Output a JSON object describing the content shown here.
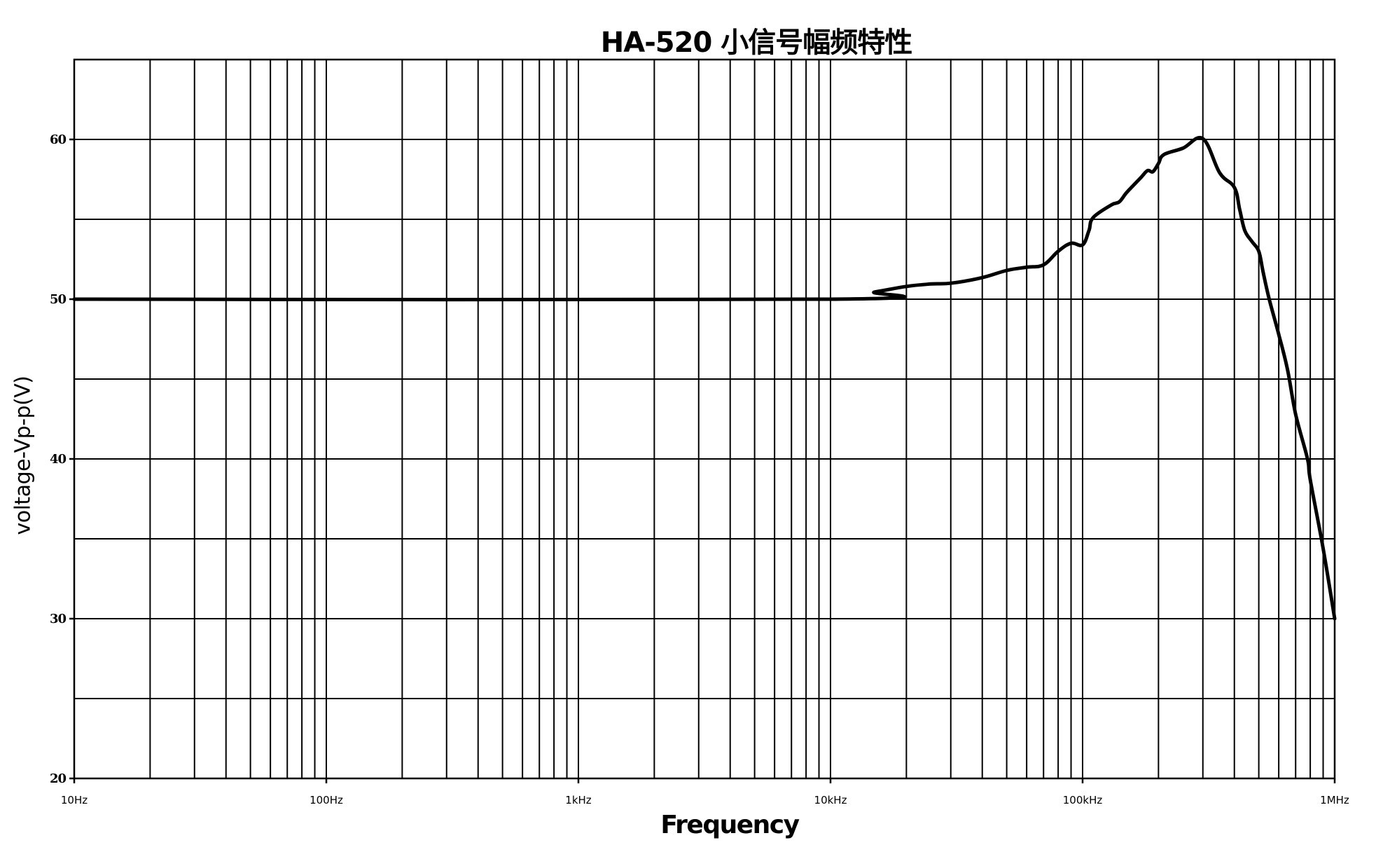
{
  "chart_data": {
    "type": "line",
    "title": "HA-520 小信号幅频特性",
    "xlabel": "Frequency",
    "ylabel": "voltage-Vp-p(V)",
    "x_scale": "log",
    "xlim": [
      10,
      1000000
    ],
    "ylim": [
      20,
      65
    ],
    "grid": true,
    "legend": null,
    "x_tick_values": [
      10,
      100,
      1000,
      10000,
      100000,
      1000000
    ],
    "x_tick_labels": [
      "10Hz",
      "100Hz",
      "1kHz",
      "10kHz",
      "100kHz",
      "1MHz"
    ],
    "y_tick_values": [
      20,
      30,
      40,
      50,
      60
    ],
    "y_tick_labels": [
      "20",
      "30",
      "40",
      "50",
      "60"
    ],
    "y_minor_grid": [
      25,
      35,
      45,
      55,
      65
    ],
    "series": [
      {
        "name": "Vp-p",
        "color": "#000000",
        "x": [
          10,
          10000,
          15000,
          20000,
          25000,
          30000,
          40000,
          50000,
          60000,
          70000,
          80000,
          90000,
          100000,
          106000,
          110000,
          130000,
          140000,
          150000,
          170000,
          181000,
          190000,
          200000,
          210000,
          250000,
          300000,
          350000,
          400000,
          420000,
          440000,
          470000,
          500000,
          520000,
          550000,
          600000,
          650000,
          700000,
          780000,
          800000,
          900000,
          1000000
        ],
        "y": [
          50,
          50,
          50.45,
          50.8,
          50.95,
          51.0,
          51.35,
          51.8,
          52.0,
          52.15,
          53.0,
          53.5,
          53.4,
          54.3,
          55.1,
          55.9,
          56.1,
          56.7,
          57.6,
          58.05,
          57.98,
          58.5,
          59.05,
          59.45,
          60.05,
          57.9,
          57.0,
          55.6,
          54.3,
          53.6,
          53.0,
          51.7,
          50.0,
          47.8,
          45.6,
          42.8,
          40.0,
          38.7,
          34.4,
          30.0
        ]
      }
    ]
  }
}
